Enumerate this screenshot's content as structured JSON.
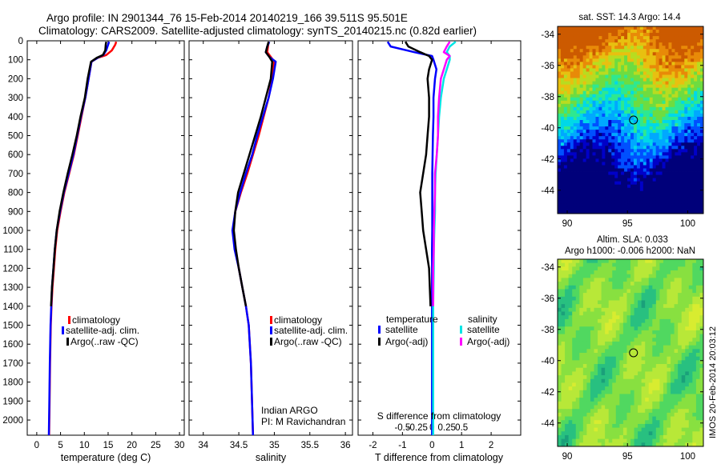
{
  "header": {
    "line1": "Argo profile: IN 2901344_76 15-Feb-2014 20140219_166 39.511S 95.501E",
    "line2": "Climatology: CARS2009. Satellite-adjusted climatology: synTS_20140215.nc (0.82d earlier)"
  },
  "side_label": "IMOS 20-Feb-2014 20:03:12",
  "colors": {
    "climatology": "#ff0000",
    "satellite_adj": "#0000ff",
    "argo": "#000000",
    "sal_satellite": "#00e5e5",
    "sal_argo": "#ff00ff"
  },
  "chart_data": [
    {
      "type": "line",
      "panel": "temperature",
      "xlabel": "temperature (deg C)",
      "ylabel": "",
      "xlim": [
        -2,
        31
      ],
      "ylim": [
        2080,
        0
      ],
      "xticks": [
        0,
        5,
        10,
        15,
        20,
        25,
        30
      ],
      "yticks": [
        0,
        100,
        200,
        300,
        400,
        500,
        600,
        700,
        800,
        900,
        1000,
        1100,
        1200,
        1300,
        1400,
        1500,
        1600,
        1700,
        1800,
        1900,
        2000
      ],
      "legend": [
        "climatology",
        "satellite-adj. clim.",
        "Argo(..raw -QC)"
      ],
      "series": [
        {
          "name": "climatology",
          "color": "#ff0000",
          "x": [
            16.7,
            16.5,
            15.8,
            14.6,
            12.8,
            11.5,
            10.9,
            10.2,
            9.4,
            8.6,
            7.8,
            6.8,
            5.8,
            5.0,
            4.3,
            3.9,
            3.6,
            3.3,
            3.1,
            2.95,
            2.8,
            2.7,
            2.6
          ],
          "y": [
            5,
            20,
            50,
            75,
            90,
            110,
            200,
            300,
            400,
            500,
            600,
            700,
            800,
            900,
            1000,
            1100,
            1200,
            1300,
            1400,
            1500,
            1700,
            1900,
            2080
          ]
        },
        {
          "name": "satellite-adj. clim.",
          "color": "#0000ff",
          "x": [
            15.2,
            15.0,
            14.6,
            14.0,
            12.8,
            11.5,
            10.9,
            10.2,
            9.3,
            8.5,
            7.7,
            6.7,
            5.7,
            4.9,
            4.2,
            3.8,
            3.5,
            3.2,
            3.05,
            2.9,
            2.75,
            2.65,
            2.55
          ],
          "y": [
            5,
            20,
            50,
            75,
            90,
            110,
            200,
            300,
            400,
            500,
            600,
            700,
            800,
            900,
            1000,
            1100,
            1200,
            1300,
            1400,
            1500,
            1700,
            1900,
            2080
          ]
        },
        {
          "name": "Argo(..raw -QC)",
          "color": "#000000",
          "x": [
            14.6,
            14.5,
            14.4,
            13.9,
            12.6,
            11.4,
            10.7,
            10.1,
            9.2,
            8.4,
            7.5,
            6.5,
            5.6,
            4.8,
            4.2,
            3.8,
            3.5,
            3.2,
            3.0
          ],
          "y": [
            5,
            20,
            50,
            75,
            90,
            110,
            200,
            300,
            400,
            500,
            600,
            700,
            800,
            900,
            1000,
            1100,
            1200,
            1300,
            1400
          ]
        }
      ]
    },
    {
      "type": "line",
      "panel": "salinity",
      "xlabel": "salinity",
      "ylabel": "",
      "xlim": [
        33.8,
        36.1
      ],
      "ylim": [
        2080,
        0
      ],
      "xticks": [
        34,
        34.5,
        35,
        35.5,
        36
      ],
      "xticklabels": [
        "34",
        "34.5",
        "35",
        "35.5",
        "36"
      ],
      "legend": [
        "climatology",
        "satellite-adj. clim.",
        "Argo(..raw -QC)"
      ],
      "annotation": [
        "Indian ARGO",
        "PI: M Ravichandran"
      ],
      "series": [
        {
          "name": "climatology",
          "color": "#ff0000",
          "x": [
            34.92,
            34.91,
            34.9,
            34.95,
            35.0,
            34.97,
            34.92,
            34.85,
            34.78,
            34.7,
            34.62,
            34.53,
            34.45,
            34.42,
            34.45,
            34.5,
            34.55,
            34.6,
            34.64,
            34.67,
            34.7
          ],
          "y": [
            5,
            30,
            60,
            85,
            110,
            200,
            300,
            400,
            500,
            600,
            700,
            800,
            900,
            1000,
            1100,
            1200,
            1300,
            1400,
            1500,
            1700,
            2080
          ]
        },
        {
          "name": "satellite-adj. clim.",
          "color": "#0000ff",
          "x": [
            34.93,
            34.9,
            34.88,
            34.93,
            35.02,
            34.98,
            34.92,
            34.84,
            34.76,
            34.69,
            34.6,
            34.52,
            34.45,
            34.41,
            34.44,
            34.5,
            34.55,
            34.6,
            34.64,
            34.67,
            34.7
          ],
          "y": [
            5,
            30,
            60,
            85,
            110,
            200,
            300,
            400,
            500,
            600,
            700,
            800,
            900,
            1000,
            1100,
            1200,
            1300,
            1400,
            1500,
            1700,
            2080
          ]
        },
        {
          "name": "Argo(..raw -QC)",
          "color": "#000000",
          "x": [
            34.92,
            34.9,
            34.88,
            34.93,
            34.97,
            34.95,
            34.88,
            34.81,
            34.73,
            34.65,
            34.57,
            34.49,
            34.45,
            34.43,
            34.46,
            34.5,
            34.55,
            34.6
          ],
          "y": [
            5,
            30,
            60,
            85,
            110,
            200,
            300,
            400,
            500,
            600,
            700,
            800,
            900,
            1000,
            1100,
            1200,
            1300,
            1400
          ]
        }
      ]
    },
    {
      "type": "line",
      "panel": "difference",
      "xlabel": "T difference from climatology",
      "top_axis_label": "S difference from climatology",
      "xlim": [
        -2.5,
        3
      ],
      "ylim": [
        2080,
        0
      ],
      "xticks": [
        -2,
        -1,
        0,
        1,
        2
      ],
      "xticklabels": [
        "-2",
        "-1",
        "0",
        "1",
        "2"
      ],
      "sticks": [
        -0.5,
        -0.25,
        0,
        0.25,
        0.5
      ],
      "sticklabels": [
        "-0.5",
        "-0.25",
        "0",
        "0.25",
        "0.5"
      ],
      "legend_titles": [
        "temperature",
        "salinity"
      ],
      "legend": [
        "satellite",
        "Argo(-adj)",
        "satellite",
        "Argo(-adj)"
      ],
      "series": [
        {
          "name": "satellite",
          "group": "temperature",
          "color": "#0000ff",
          "x": [
            -1.5,
            -1.4,
            -0.6,
            0.0,
            0.05,
            0.15,
            0.1,
            0.05,
            0.05,
            0.03,
            0.02,
            0.01,
            0.01,
            0.01,
            0.01,
            0.0,
            0.0,
            0.0,
            0.0,
            0.0
          ],
          "y": [
            5,
            30,
            60,
            80,
            100,
            150,
            200,
            300,
            400,
            500,
            600,
            700,
            800,
            900,
            1000,
            1100,
            1200,
            1400,
            1700,
            2080
          ]
        },
        {
          "name": "Argo(-adj)",
          "group": "temperature",
          "color": "#000000",
          "x": [
            -0.9,
            -0.8,
            -0.4,
            -0.1,
            0.0,
            -0.1,
            -0.15,
            -0.1,
            -0.1,
            -0.15,
            -0.2,
            -0.3,
            -0.4,
            -0.35,
            -0.3,
            -0.2,
            -0.1,
            -0.05
          ],
          "y": [
            5,
            30,
            60,
            80,
            100,
            150,
            200,
            300,
            400,
            500,
            600,
            700,
            800,
            900,
            1000,
            1100,
            1200,
            1400
          ]
        },
        {
          "name": "satellite",
          "group": "salinity",
          "color": "#00e5e5",
          "x": [
            0.4,
            0.3,
            0.25,
            0.3,
            0.3,
            0.25,
            0.2,
            0.15,
            0.12,
            0.1,
            0.08,
            0.06,
            0.05,
            0.05,
            0.04,
            0.03,
            0.03,
            0.02,
            0.02,
            0.02
          ],
          "y": [
            5,
            30,
            60,
            80,
            100,
            150,
            200,
            300,
            400,
            500,
            600,
            700,
            800,
            900,
            1000,
            1100,
            1200,
            1400,
            1700,
            2080
          ]
        },
        {
          "name": "Argo(-adj)",
          "group": "salinity",
          "color": "#ff00ff",
          "x": [
            0.3,
            0.25,
            0.2,
            0.3,
            0.25,
            0.2,
            0.15,
            0.12,
            0.1,
            0.1,
            0.08,
            0.05,
            0.05,
            0.04,
            0.03,
            0.03,
            0.02,
            0.02
          ],
          "y": [
            5,
            30,
            60,
            80,
            100,
            150,
            200,
            300,
            400,
            500,
            600,
            700,
            800,
            900,
            1000,
            1100,
            1200,
            1400
          ]
        }
      ]
    },
    {
      "type": "heatmap",
      "panel": "sst_map",
      "title": "sat. SST: 14.3 Argo: 14.4",
      "xlim": [
        89.2,
        101.3
      ],
      "ylim": [
        -45.5,
        -33.5
      ],
      "xticks": [
        90,
        95,
        100
      ],
      "yticks": [
        -34,
        -36,
        -38,
        -40,
        -42,
        -44
      ],
      "marker": {
        "lon": 95.5,
        "lat": -39.5
      },
      "palette": [
        "#00007a",
        "#0000c8",
        "#0050ff",
        "#00a8ff",
        "#00d8e8",
        "#2ee890",
        "#6edc40",
        "#b8dc20",
        "#e8c010",
        "#e88a08",
        "#cc5a00"
      ]
    },
    {
      "type": "heatmap",
      "panel": "sla_map",
      "title": "Altim. SLA: 0.033",
      "subtitle": "Argo h1000: -0.006 h2000: NaN",
      "xlim": [
        89.2,
        101.3
      ],
      "ylim": [
        -45.5,
        -33.5
      ],
      "xticks": [
        90,
        95,
        100
      ],
      "yticks": [
        -34,
        -36,
        -38,
        -40,
        -42,
        -44
      ],
      "marker": {
        "lon": 95.5,
        "lat": -39.5
      },
      "palette": [
        "#1aa07a",
        "#28c080",
        "#50d860",
        "#88e040",
        "#b8e838",
        "#d8ec30"
      ]
    }
  ]
}
